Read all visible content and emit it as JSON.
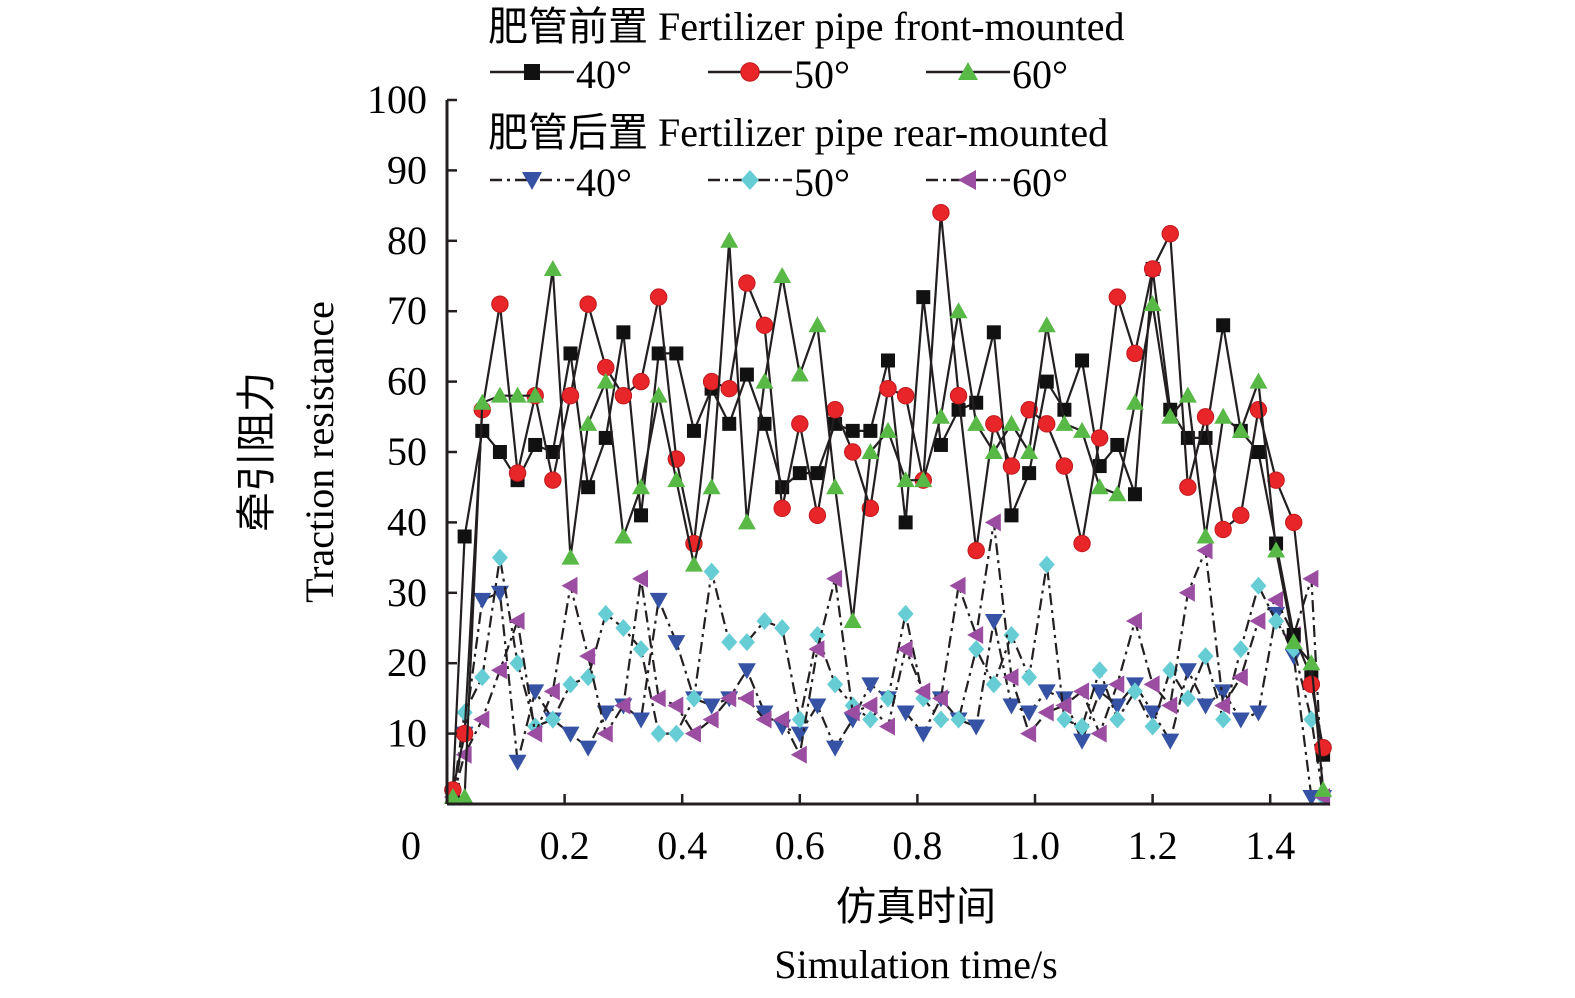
{
  "chart_data": {
    "type": "line",
    "xlabel_cn": "仿真时间",
    "xlabel_en": "Simulation time/s",
    "ylabel_cn": "牵引阻力",
    "ylabel_en": "Traction resistance",
    "xlim": [
      0,
      1.5
    ],
    "ylim": [
      0,
      100
    ],
    "xticks": [
      0.2,
      0.4,
      0.6,
      0.8,
      1.0,
      1.2,
      1.4
    ],
    "xtick_labels": [
      "0.2",
      "0.4",
      "0.6",
      "0.8",
      "1.0",
      "1.2",
      "1.4"
    ],
    "yticks": [
      10,
      20,
      30,
      40,
      50,
      60,
      70,
      80,
      90,
      100
    ],
    "ytick_labels": [
      "10",
      "20",
      "30",
      "40",
      "50",
      "60",
      "70",
      "80",
      "90",
      "100"
    ],
    "origin_label": "0",
    "legend_groups": [
      {
        "title": "肥管前置 Fertilizer pipe front-mounted",
        "series_indices": [
          0,
          1,
          2
        ]
      },
      {
        "title": "肥管后置 Fertilizer pipe rear-mounted",
        "series_indices": [
          3,
          4,
          5
        ]
      }
    ],
    "x": [
      0.01,
      0.03,
      0.06,
      0.09,
      0.12,
      0.15,
      0.18,
      0.21,
      0.24,
      0.27,
      0.3,
      0.33,
      0.36,
      0.39,
      0.42,
      0.45,
      0.48,
      0.51,
      0.54,
      0.57,
      0.6,
      0.63,
      0.66,
      0.69,
      0.72,
      0.75,
      0.78,
      0.81,
      0.84,
      0.87,
      0.9,
      0.93,
      0.96,
      0.99,
      1.02,
      1.05,
      1.08,
      1.11,
      1.14,
      1.17,
      1.2,
      1.23,
      1.26,
      1.29,
      1.32,
      1.35,
      1.38,
      1.41,
      1.44,
      1.47,
      1.49
    ],
    "series": [
      {
        "name": "40°",
        "group": "front",
        "color": "#111111",
        "marker": "square",
        "dash": "solid",
        "values": [
          2,
          38,
          53,
          50,
          46,
          51,
          50,
          64,
          45,
          52,
          67,
          41,
          64,
          64,
          53,
          59,
          54,
          61,
          54,
          45,
          47,
          47,
          54,
          53,
          53,
          63,
          40,
          72,
          51,
          56,
          57,
          67,
          41,
          47,
          60,
          56,
          63,
          48,
          51,
          44,
          76,
          56,
          52,
          52,
          68,
          53,
          50,
          37,
          24,
          18,
          7
        ]
      },
      {
        "name": "50°",
        "group": "front",
        "color": "#e8262a",
        "marker": "circle",
        "dash": "solid",
        "values": [
          2,
          10,
          56,
          71,
          47,
          58,
          46,
          58,
          71,
          62,
          58,
          60,
          72,
          49,
          37,
          60,
          59,
          74,
          68,
          42,
          54,
          41,
          56,
          50,
          42,
          59,
          58,
          46,
          84,
          58,
          36,
          54,
          48,
          56,
          54,
          48,
          37,
          52,
          72,
          64,
          76,
          81,
          45,
          55,
          39,
          41,
          56,
          46,
          40,
          17,
          8
        ]
      },
      {
        "name": "60°",
        "group": "front",
        "color": "#58b947",
        "marker": "triangle-up",
        "dash": "solid",
        "values": [
          1,
          1,
          57,
          58,
          58,
          58,
          76,
          35,
          54,
          60,
          38,
          45,
          58,
          46,
          34,
          45,
          80,
          40,
          60,
          75,
          61,
          68,
          45,
          26,
          50,
          53,
          46,
          46,
          55,
          70,
          54,
          50,
          54,
          50,
          68,
          54,
          53,
          45,
          44,
          57,
          71,
          55,
          58,
          38,
          55,
          53,
          60,
          36,
          23,
          20,
          2
        ]
      },
      {
        "name": "40°",
        "group": "rear",
        "color": "#3652a4",
        "marker": "triangle-down",
        "dash": "dashdot",
        "values": [
          1,
          10,
          29,
          30,
          6,
          16,
          12,
          10,
          8,
          13,
          14,
          12,
          29,
          23,
          15,
          14,
          15,
          19,
          13,
          11,
          10,
          14,
          8,
          12,
          17,
          15,
          13,
          10,
          15,
          12,
          11,
          26,
          14,
          13,
          16,
          15,
          9,
          16,
          14,
          17,
          13,
          9,
          19,
          14,
          16,
          12,
          13,
          27,
          21,
          1,
          1
        ]
      },
      {
        "name": "50°",
        "group": "rear",
        "color": "#67cdd5",
        "marker": "diamond",
        "dash": "dashdot",
        "values": [
          1,
          13,
          18,
          35,
          20,
          11,
          12,
          17,
          18,
          27,
          25,
          22,
          10,
          10,
          15,
          33,
          23,
          23,
          26,
          25,
          12,
          24,
          17,
          14,
          12,
          15,
          27,
          15,
          12,
          12,
          22,
          17,
          24,
          18,
          34,
          12,
          11,
          19,
          12,
          16,
          11,
          19,
          15,
          21,
          12,
          22,
          31,
          26,
          22,
          12,
          1
        ]
      },
      {
        "name": "60°",
        "group": "rear",
        "color": "#9b4ea1",
        "marker": "triangle-left",
        "dash": "dashdot",
        "values": [
          1,
          7,
          12,
          19,
          26,
          10,
          16,
          31,
          21,
          10,
          14,
          32,
          15,
          14,
          10,
          12,
          15,
          15,
          12,
          12,
          7,
          22,
          32,
          13,
          14,
          11,
          22,
          16,
          15,
          31,
          24,
          40,
          18,
          10,
          13,
          14,
          16,
          10,
          17,
          26,
          17,
          14,
          30,
          36,
          14,
          18,
          26,
          29,
          24,
          32,
          1
        ]
      }
    ]
  }
}
